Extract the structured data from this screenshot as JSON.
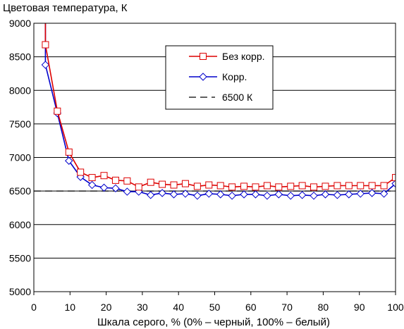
{
  "chart_data": {
    "type": "line",
    "title": "Цветовая температура, К",
    "xlabel": "Шкала серого, % (0% – черный, 100% – белый)",
    "ylabel": "",
    "xlim": [
      0,
      100
    ],
    "ylim": [
      5000,
      9000
    ],
    "xticks": [
      "0",
      "10",
      "20",
      "30",
      "40",
      "50",
      "60",
      "70",
      "80",
      "90",
      "100"
    ],
    "yticks": [
      "5000",
      "5500",
      "6000",
      "6500",
      "7000",
      "7500",
      "8000",
      "8500",
      "9000"
    ],
    "grid": true,
    "legend_position": "top-right",
    "reference_line": {
      "name": "6500 К",
      "value": 6500,
      "color": "#000000"
    },
    "series": [
      {
        "name": "Без корр.",
        "color": "#dd0000",
        "marker": "square",
        "x": [
          3.2,
          6.5,
          9.7,
          12.9,
          16.1,
          19.4,
          22.6,
          25.8,
          29.0,
          32.3,
          35.5,
          38.7,
          41.9,
          45.2,
          48.4,
          51.6,
          54.8,
          58.1,
          61.3,
          64.5,
          67.7,
          71.0,
          74.2,
          77.4,
          80.6,
          83.9,
          87.1,
          90.3,
          93.5,
          96.8,
          100
        ],
        "y": [
          8680,
          7690,
          7080,
          6780,
          6700,
          6730,
          6660,
          6650,
          6560,
          6630,
          6600,
          6590,
          6610,
          6570,
          6590,
          6580,
          6560,
          6570,
          6560,
          6580,
          6560,
          6570,
          6580,
          6560,
          6570,
          6580,
          6580,
          6580,
          6580,
          6580,
          6700
        ],
        "y_start": 9100
      },
      {
        "name": "Корр.",
        "color": "#0000cc",
        "marker": "diamond",
        "x": [
          3.2,
          6.5,
          9.7,
          12.9,
          16.1,
          19.4,
          22.6,
          25.8,
          29.0,
          32.3,
          35.5,
          38.7,
          41.9,
          45.2,
          48.4,
          51.6,
          54.8,
          58.1,
          61.3,
          64.5,
          67.7,
          71.0,
          74.2,
          77.4,
          80.6,
          83.9,
          87.1,
          90.3,
          93.5,
          96.8,
          100
        ],
        "y": [
          8380,
          7660,
          6950,
          6710,
          6590,
          6550,
          6540,
          6490,
          6490,
          6440,
          6470,
          6450,
          6460,
          6430,
          6460,
          6450,
          6430,
          6450,
          6450,
          6430,
          6450,
          6430,
          6440,
          6430,
          6450,
          6440,
          6450,
          6460,
          6470,
          6460,
          6610
        ],
        "y_start": 9100
      }
    ]
  }
}
